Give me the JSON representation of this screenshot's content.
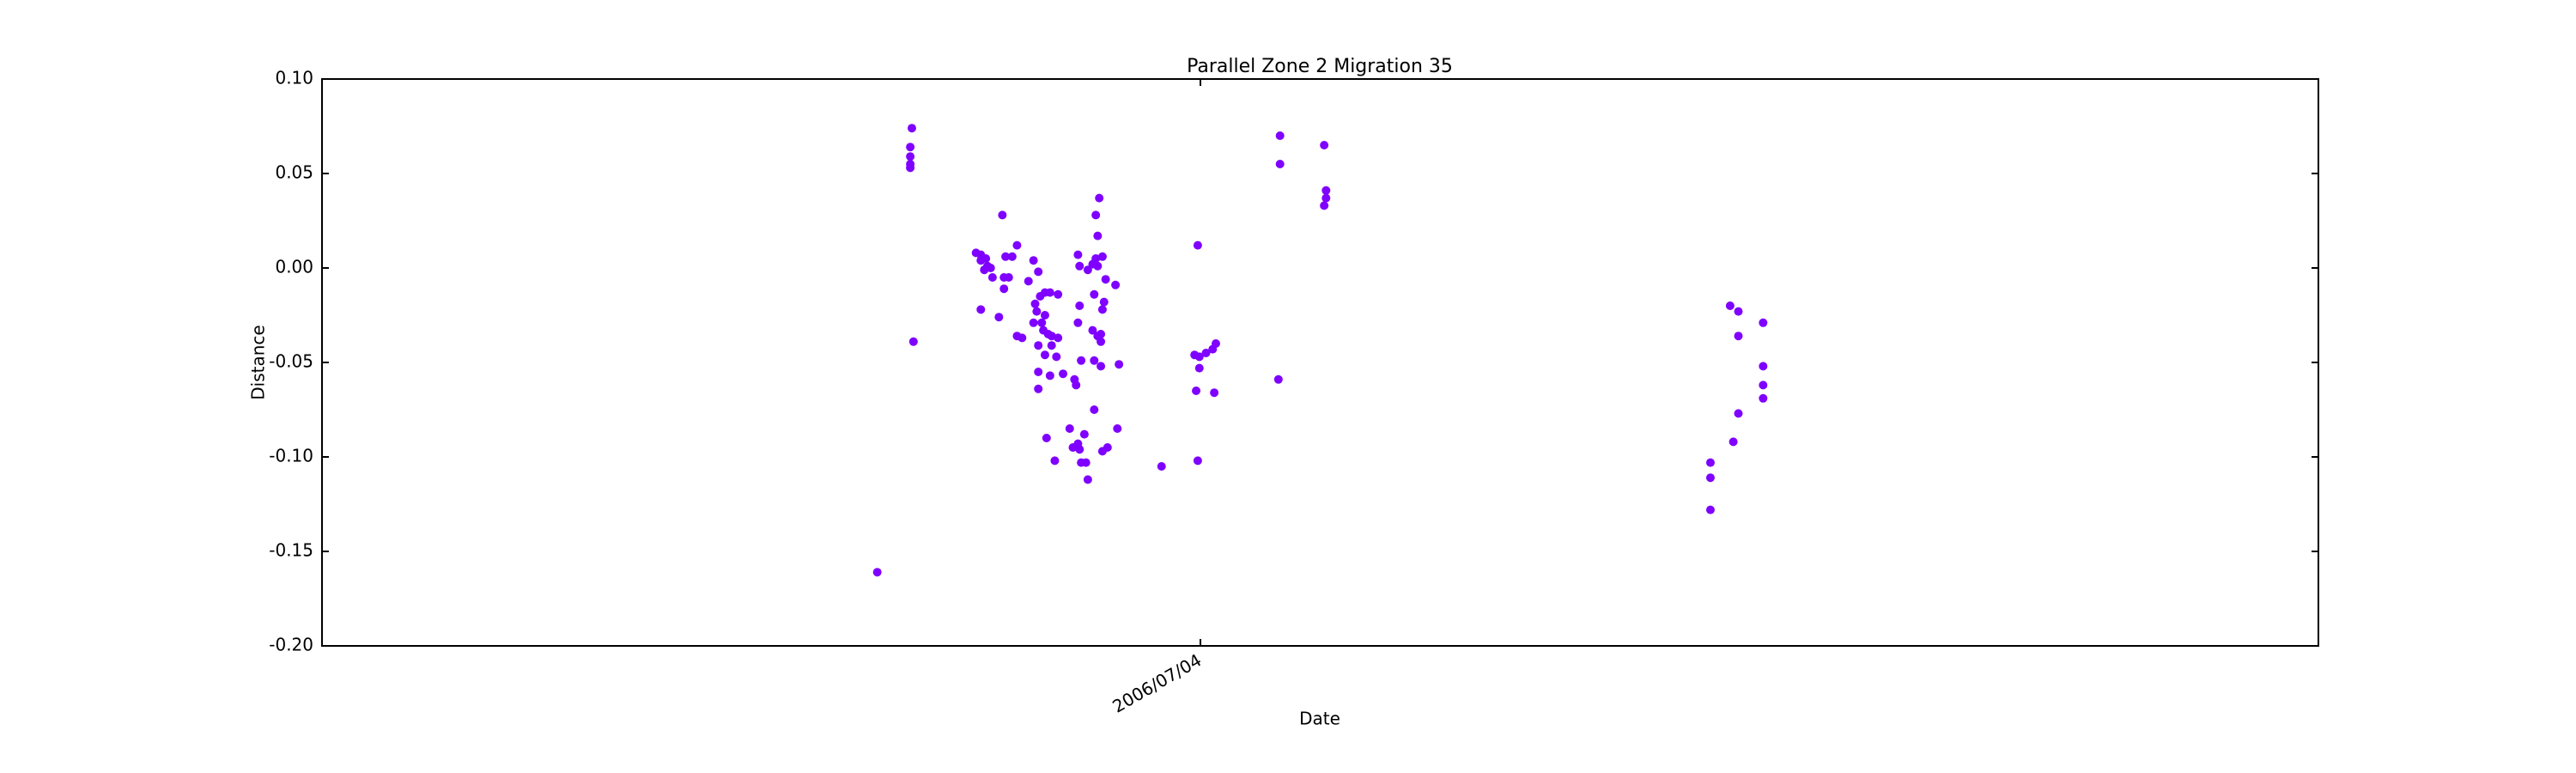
{
  "chart_data": {
    "type": "scatter",
    "title": "Parallel Zone 2 Migration 35",
    "x_label": "Date",
    "y_label": "Distance",
    "color": "#7f00ff",
    "grid": false,
    "xlim": [
      732463,
      732538
    ],
    "xticks": [
      {
        "value": 732496,
        "label": "2006/07/04"
      }
    ],
    "ylim": [
      -0.2,
      0.1
    ],
    "yticks": [
      {
        "value": -0.2,
        "label": "-0.20"
      },
      {
        "value": -0.15,
        "label": "-0.15"
      },
      {
        "value": -0.1,
        "label": "-0.10"
      },
      {
        "value": -0.05,
        "label": "-0.05"
      },
      {
        "value": 0,
        "label": "0.00"
      },
      {
        "value": 0.05,
        "label": "0.05"
      },
      {
        "value": 0.1,
        "label": "0.10"
      }
    ],
    "x": [
      732483.86,
      732485.16,
      732485.1,
      732485.1,
      732485.1,
      732485.1,
      732485.22,
      732487.57,
      732487.75,
      732487.75,
      732487.94,
      732487.88,
      732488.0,
      732488.19,
      732488.12,
      732487.75,
      732488.43,
      732488.56,
      732488.68,
      732488.8,
      732488.62,
      732488.62,
      732488.93,
      732489.11,
      732489.11,
      732489.3,
      732489.54,
      732489.73,
      732489.91,
      732489.79,
      732489.98,
      732489.85,
      732489.73,
      732490.04,
      732490.16,
      732489.91,
      732490.1,
      732490.28,
      732490.41,
      732490.16,
      732490.41,
      732490.65,
      732490.59,
      732489.91,
      732489.91,
      732490.35,
      732490.84,
      732490.22,
      732490.53,
      732490.65,
      732490.35,
      732490.16,
      732491.4,
      732491.46,
      732491.27,
      732491.33,
      732491.09,
      732491.21,
      732491.4,
      732491.46,
      732491.52,
      732491.7,
      732491.77,
      732491.64,
      732491.4,
      732491.46,
      732491.52,
      732491.77,
      732491.95,
      732492.07,
      732492.14,
      732492.14,
      732492.2,
      732492.07,
      732492.01,
      732491.95,
      732492.14,
      732492.26,
      732492.32,
      732492.44,
      732492.38,
      732492.32,
      732492.26,
      732492.01,
      732492.26,
      732492.01,
      732492.32,
      732492.51,
      732492.81,
      732492.94,
      732492.88,
      732494.54,
      732495.9,
      732495.78,
      732495.96,
      732496.21,
      732495.96,
      732495.84,
      732495.9,
      732496.46,
      732496.58,
      732496.52,
      732498.99,
      732498.99,
      732498.93,
      732500.65,
      732500.72,
      732500.72,
      732500.65,
      732515.16,
      732515.16,
      732515.16,
      732515.9,
      732516.21,
      732516.21,
      732516.02,
      732516.21,
      732517.14,
      732517.14,
      732517.14,
      732517.14
    ],
    "values": [
      -0.161,
      0.074,
      0.064,
      0.059,
      0.055,
      0.053,
      -0.039,
      0.008,
      0.007,
      0.004,
      0.005,
      -0.001,
      0.001,
      -0.005,
      0,
      -0.022,
      -0.026,
      0.028,
      0.006,
      -0.005,
      -0.005,
      -0.011,
      0.006,
      0.012,
      -0.036,
      -0.037,
      -0.007,
      0.004,
      -0.002,
      -0.019,
      -0.015,
      -0.023,
      -0.029,
      -0.029,
      -0.025,
      -0.041,
      -0.033,
      -0.035,
      -0.036,
      -0.046,
      -0.041,
      -0.037,
      -0.047,
      -0.055,
      -0.064,
      -0.057,
      -0.056,
      -0.09,
      -0.102,
      -0.014,
      -0.013,
      -0.013,
      0.007,
      0.001,
      -0.059,
      -0.062,
      -0.085,
      -0.095,
      -0.093,
      -0.096,
      -0.103,
      -0.103,
      -0.112,
      -0.088,
      -0.029,
      -0.02,
      -0.049,
      -0.001,
      0.002,
      0.005,
      0.001,
      0.017,
      0.037,
      0.028,
      -0.014,
      -0.033,
      -0.036,
      -0.039,
      0.006,
      -0.006,
      -0.018,
      -0.022,
      -0.035,
      -0.049,
      -0.052,
      -0.075,
      -0.097,
      -0.095,
      -0.009,
      -0.051,
      -0.085,
      -0.105,
      0.012,
      -0.046,
      -0.047,
      -0.045,
      -0.053,
      -0.065,
      -0.102,
      -0.043,
      -0.04,
      -0.066,
      0.07,
      0.055,
      -0.059,
      0.065,
      0.041,
      0.037,
      0.033,
      -0.103,
      -0.111,
      -0.128,
      -0.02,
      -0.023,
      -0.036,
      -0.092,
      -0.077,
      -0.029,
      -0.052,
      -0.062,
      -0.069
    ]
  }
}
